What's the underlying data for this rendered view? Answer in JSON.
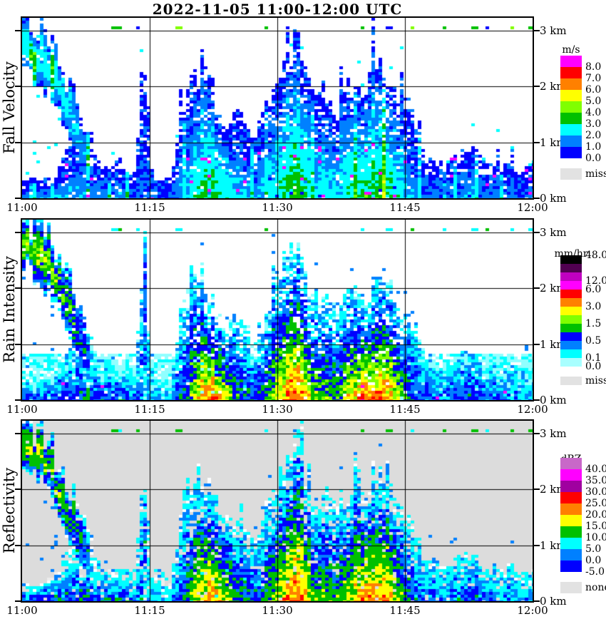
{
  "title": "2022-11-05  11:00-12:00 UTC",
  "chart_data": {
    "type": "heatmap",
    "title": "2022-11-05  11:00-12:00 UTC",
    "x_ticks": [
      "11:00",
      "11:15",
      "11:30",
      "11:45",
      "12:00"
    ],
    "y_ticks_km": [
      "0 km",
      "1 km",
      "2 km",
      "3 km"
    ],
    "x_range_minutes": [
      0,
      60
    ],
    "y_range_km": [
      0,
      3.23
    ],
    "grid": {
      "x_lines_at_minutes": [
        15,
        30,
        45
      ],
      "y_lines_at_km": [
        1,
        2,
        3
      ]
    },
    "echo_top_km": [
      3.22,
      3.22,
      3.1,
      2.9,
      2.6,
      2.3,
      1.9,
      1.5,
      1.0,
      0.6,
      0.55,
      0.7,
      0.6,
      0.45,
      2.6,
      0.5,
      0.3,
      0.25,
      1.1,
      2.0,
      2.3,
      2.25,
      1.9,
      1.5,
      1.35,
      1.6,
      1.25,
      1.05,
      1.5,
      2.05,
      2.3,
      2.6,
      2.95,
      2.3,
      1.8,
      2.0,
      1.7,
      1.6,
      2.0,
      2.2,
      1.8,
      2.4,
      2.5,
      2.0,
      1.6,
      1.7,
      1.2,
      0.75,
      0.8,
      0.6,
      0.7,
      0.8,
      0.95,
      0.8,
      0.6,
      0.7,
      0.55,
      0.65,
      0.5,
      0.6
    ],
    "echo_base_km": [
      2.3,
      2.25,
      2.1,
      1.9,
      1.6,
      1.2,
      0.8,
      0.4,
      0.1,
      0,
      0,
      0,
      0,
      0,
      0.25,
      0,
      0,
      0,
      0,
      0,
      0,
      0,
      0,
      0,
      0,
      0,
      0,
      0,
      0,
      0,
      0,
      0,
      0,
      0,
      0,
      0,
      0,
      0,
      0,
      0,
      0,
      0,
      0,
      0,
      0,
      0,
      0,
      0,
      0,
      0,
      0,
      0,
      0,
      0,
      0,
      0,
      0,
      0,
      0,
      0
    ],
    "surface_top_km": [
      0.35,
      0.3,
      0.35,
      0.4,
      0.55,
      0.9,
      1.1,
      1.2,
      1.2,
      0,
      0,
      0,
      0,
      0,
      0,
      0,
      0,
      0,
      0,
      0,
      0,
      0,
      0,
      0,
      0,
      0,
      0,
      0,
      0,
      0,
      0,
      0,
      0,
      0,
      0,
      0,
      0,
      0,
      0,
      0,
      0,
      0,
      0,
      0,
      0,
      0,
      0,
      0,
      0,
      0,
      0,
      0,
      0,
      0,
      0,
      0,
      0,
      0,
      0,
      0
    ],
    "core_level": [
      2.2,
      2.4,
      2.2,
      2.0,
      2.0,
      1.8,
      1.5,
      1.2,
      1.0,
      1.2,
      1.1,
      1.3,
      1.2,
      0.9,
      1.0,
      0.5,
      0.4,
      0.4,
      1.0,
      1.4,
      2.6,
      3.2,
      3.4,
      3.0,
      2.4,
      1.6,
      1.4,
      1.2,
      1.6,
      2.0,
      2.8,
      3.4,
      3.6,
      3.0,
      2.0,
      2.2,
      1.8,
      2.0,
      2.8,
      3.0,
      3.4,
      3.2,
      3.4,
      3.0,
      2.2,
      1.5,
      1.1,
      0.9,
      1.0,
      0.8,
      0.9,
      1.0,
      1.5,
      1.3,
      0.8,
      0.9,
      0.7,
      0.8,
      0.6,
      0.7
    ],
    "interference_minutes": [
      10.6,
      11.2,
      13.3,
      18.1,
      28.4,
      39.7,
      42.6,
      45.6,
      49.3,
      52.7,
      54.4,
      57.3,
      59.5
    ],
    "panels": [
      {
        "id": "fall-velocity",
        "label": "Fall Velocity",
        "unit": "m/s",
        "bg": "#FFFFFF",
        "seed": 11,
        "gain": 0.8,
        "offset": -0.15,
        "levels": [
          [
            -0.7,
            "#0000FF"
          ],
          [
            0.2,
            "#0080FF"
          ],
          [
            1.0,
            "#00FFFF"
          ],
          [
            2.0,
            "#00C000"
          ],
          [
            2.8,
            "#80FF00"
          ],
          [
            3.4,
            "#FFFF00"
          ]
        ],
        "speck": {
          "color": "#FF00FF",
          "p": 0.02,
          "below_km": 1.0
        },
        "col_boost": {
          "p": 0.12,
          "amount": 1.6
        },
        "drizzle": {
          "periods": [
            [
              0,
              60
            ]
          ],
          "top_km": 0.42,
          "p": 0.5,
          "colors": [
            "#0000FF",
            "#0080FF",
            "#0000FF"
          ]
        },
        "interference_colors": [
          "#00C000",
          "#00C000",
          "#0000FF",
          "#80FF00"
        ],
        "colorbar": {
          "unit": "m/s",
          "box_colors": [
            "#FF00FF",
            "#FF0000",
            "#FF8000",
            "#FFFF00",
            "#80FF00",
            "#00C000",
            "#00FFFF",
            "#0080FF",
            "#0000FF"
          ],
          "labels": [
            [
              "8.0",
              1
            ],
            [
              "7.0",
              2
            ],
            [
              "6.0",
              3
            ],
            [
              "5.0",
              4
            ],
            [
              "4.0",
              5
            ],
            [
              "3.0",
              6
            ],
            [
              "2.0",
              7
            ],
            [
              "1.0",
              8
            ],
            [
              "0.0",
              9
            ]
          ],
          "missing_label": "miss",
          "missing_color": "#E2E2E2"
        }
      },
      {
        "id": "rain-intensity",
        "label": "Rain Intensity",
        "unit": "mm/hr",
        "bg": "#FFFFFF",
        "seed": 22,
        "gain": 1.0,
        "offset": 0.0,
        "levels": [
          [
            -0.7,
            "#90FFFF"
          ],
          [
            -0.2,
            "#00FFFF"
          ],
          [
            0.35,
            "#0080FF"
          ],
          [
            0.9,
            "#0000FF"
          ],
          [
            1.5,
            "#00C000"
          ],
          [
            2.0,
            "#80FF00"
          ],
          [
            2.4,
            "#FFFF00"
          ],
          [
            2.9,
            "#FF8000"
          ],
          [
            3.4,
            "#FF0000"
          ],
          [
            4.1,
            "#FF00FF"
          ]
        ],
        "speck": {
          "color": "#FF00FF",
          "p": 0.006,
          "below_km": 0.35
        },
        "col_boost": null,
        "drizzle": {
          "periods": [
            [
              0,
              28
            ],
            [
              44,
              60
            ]
          ],
          "top_km": 0.85,
          "p": 0.8,
          "colors": [
            "#90FFFF",
            "#90FFFF",
            "#00FFFF"
          ]
        },
        "interference_colors": [
          "#00FFFF",
          "#00C000",
          "#00FFFF"
        ],
        "colorbar": {
          "unit": "mm/hr",
          "box_colors": [
            "#000000",
            "#500050",
            "#C000C0",
            "#FF00FF",
            "#FF0000",
            "#FF8000",
            "#FFFF00",
            "#80FF00",
            "#00C000",
            "#0000FF",
            "#0080FF",
            "#00FFFF",
            "#A8FFFF"
          ],
          "labels": [
            [
              "48.0",
              0
            ],
            [
              "12.0",
              3
            ],
            [
              "6.0",
              4
            ],
            [
              "3.0",
              6
            ],
            [
              "1.5",
              8
            ],
            [
              "0.5",
              10
            ],
            [
              "0.1",
              12
            ],
            [
              "0.0",
              13
            ]
          ],
          "missing_label": "miss",
          "missing_color": "#E2E2E2"
        }
      },
      {
        "id": "reflectivity",
        "label": "Reflectivity",
        "unit": "dBZ",
        "bg": "#DCDCDC",
        "seed": 33,
        "gain": 1.0,
        "offset": 0.0,
        "levels": [
          [
            -0.75,
            "#FFFFFF"
          ],
          [
            -0.25,
            "#00FFFF"
          ],
          [
            0.45,
            "#0080FF"
          ],
          [
            0.95,
            "#0000FF"
          ],
          [
            1.45,
            "#00C000"
          ],
          [
            2.3,
            "#FFFF00"
          ],
          [
            3.0,
            "#FF8000"
          ],
          [
            3.5,
            "#FF0000"
          ]
        ],
        "speck": null,
        "col_boost": null,
        "drizzle": {
          "periods": [
            [
              2,
              28
            ],
            [
              46,
              60
            ]
          ],
          "top_km": 0.6,
          "p": 0.3,
          "colors": [
            "#EDEDED",
            "#00FFFF",
            "#0080FF"
          ]
        },
        "interference_colors": [
          "#00C000",
          "#00FFFF",
          "#00C000"
        ],
        "colorbar": {
          "unit": "dBZ",
          "box_colors": [
            "#C868C8",
            "#FF00FF",
            "#A000A0",
            "#FF0000",
            "#FF8000",
            "#FFFF00",
            "#00C000",
            "#00FFFF",
            "#0080FF",
            "#0000FF"
          ],
          "labels": [
            [
              "40.0",
              1
            ],
            [
              "35.0",
              2
            ],
            [
              "30.0",
              3
            ],
            [
              "25.0",
              4
            ],
            [
              "20.0",
              5
            ],
            [
              "15.0",
              6
            ],
            [
              "10.0",
              7
            ],
            [
              "5.0",
              8
            ],
            [
              "0.0",
              9
            ],
            [
              "-5.0",
              10
            ]
          ],
          "missing_label": "none",
          "missing_color": "#E2E2E2"
        }
      }
    ]
  }
}
